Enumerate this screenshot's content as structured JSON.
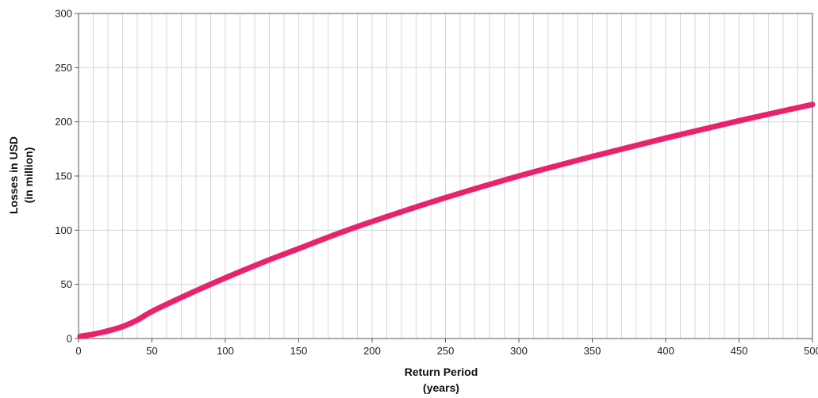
{
  "chart_data": {
    "type": "line",
    "title": "",
    "xlabel": [
      "Return Period",
      "(years)"
    ],
    "ylabel": [
      "Losses in USD",
      "(in million)"
    ],
    "xlim": [
      0,
      500
    ],
    "ylim": [
      0,
      300
    ],
    "x_ticks": [
      0,
      50,
      100,
      150,
      200,
      250,
      300,
      350,
      400,
      450,
      500
    ],
    "y_ticks": [
      0,
      50,
      100,
      150,
      200,
      250,
      300
    ],
    "x_minor_step": 10,
    "grid": true,
    "colors": {
      "line": "#e8236b",
      "grid": "#cfcfcf",
      "axis": "#555555"
    },
    "series": [
      {
        "x": [
          1,
          10,
          20,
          30,
          40,
          50,
          75,
          100,
          125,
          150,
          175,
          200,
          250,
          300,
          350,
          400,
          450,
          500
        ],
        "y": [
          2,
          4,
          7,
          11,
          17,
          25,
          41,
          56,
          70,
          83,
          96,
          108,
          130,
          150,
          168,
          185,
          201,
          216
        ]
      }
    ]
  }
}
